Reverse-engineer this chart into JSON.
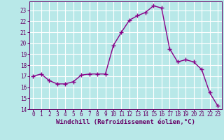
{
  "x": [
    0,
    1,
    2,
    3,
    4,
    5,
    6,
    7,
    8,
    9,
    10,
    11,
    12,
    13,
    14,
    15,
    16,
    17,
    18,
    19,
    20,
    21,
    22,
    23
  ],
  "y": [
    17.0,
    17.2,
    16.6,
    16.3,
    16.3,
    16.5,
    17.1,
    17.2,
    17.2,
    17.2,
    19.8,
    21.0,
    22.1,
    22.5,
    22.8,
    23.4,
    23.2,
    19.5,
    18.3,
    18.5,
    18.3,
    17.6,
    15.5,
    14.3
  ],
  "line_color": "#880088",
  "marker": "+",
  "bg_color": "#b8e8e8",
  "grid_color": "#ffffff",
  "xlabel": "Windchill (Refroidissement éolien,°C)",
  "xlabel_color": "#660066",
  "tick_color": "#660066",
  "ylim": [
    14,
    23.8
  ],
  "xlim": [
    -0.5,
    23.5
  ],
  "yticks": [
    14,
    15,
    16,
    17,
    18,
    19,
    20,
    21,
    22,
    23
  ],
  "xticks": [
    0,
    1,
    2,
    3,
    4,
    5,
    6,
    7,
    8,
    9,
    10,
    11,
    12,
    13,
    14,
    15,
    16,
    17,
    18,
    19,
    20,
    21,
    22,
    23
  ],
  "linewidth": 1.0,
  "markersize": 4,
  "tick_fontsize": 5.5,
  "xlabel_fontsize": 6.5
}
